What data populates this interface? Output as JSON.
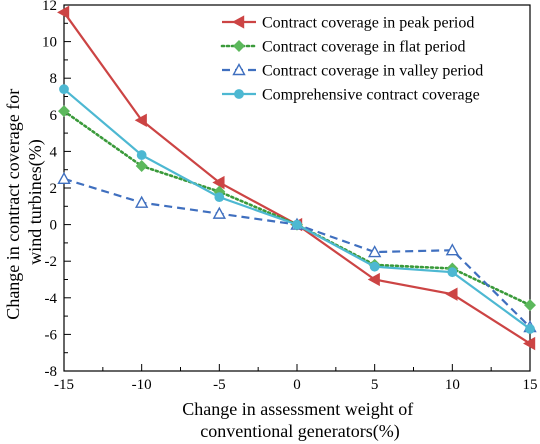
{
  "chart_data": {
    "type": "line",
    "title": "",
    "xlabel_lines": [
      "Change in assessment weight of",
      "conventional generators(%)"
    ],
    "ylabel_lines": [
      "Change in contract coverage for",
      "wind turbines(%)"
    ],
    "x": [
      -15,
      -10,
      -5,
      0,
      5,
      10,
      15
    ],
    "xticks": [
      -15,
      -10,
      -5,
      0,
      5,
      10,
      15
    ],
    "yticks": [
      -8,
      -6,
      -4,
      -2,
      0,
      2,
      4,
      6,
      8,
      10,
      12
    ],
    "xlim": [
      -15,
      15
    ],
    "ylim": [
      -8,
      12
    ],
    "grid": false,
    "legend_position": "top-right",
    "series": [
      {
        "name": "Contract coverage in peak period",
        "color": "#cc4444",
        "line_style": "solid",
        "marker": "triangle-left",
        "marker_fill": "filled",
        "values": [
          11.6,
          5.7,
          2.3,
          0.0,
          -3.0,
          -3.8,
          -6.5
        ]
      },
      {
        "name": "Contract coverage in flat period",
        "color": "#3a9a3a",
        "marker_color": "#5cb85c",
        "line_style": "dotted",
        "marker": "diamond",
        "marker_fill": "filled",
        "values": [
          6.2,
          3.2,
          1.8,
          0.0,
          -2.2,
          -2.4,
          -4.4
        ]
      },
      {
        "name": "Contract coverage in valley period",
        "color": "#3f6fbf",
        "line_style": "dashed",
        "marker": "triangle-up",
        "marker_fill": "open",
        "values": [
          2.5,
          1.2,
          0.6,
          0.0,
          -1.5,
          -1.4,
          -5.6
        ]
      },
      {
        "name": "Comprehensive contract coverage",
        "color": "#4db8d2",
        "line_style": "solid",
        "marker": "circle",
        "marker_fill": "filled",
        "values": [
          7.4,
          3.8,
          1.5,
          0.0,
          -2.3,
          -2.6,
          -5.7
        ]
      }
    ]
  }
}
